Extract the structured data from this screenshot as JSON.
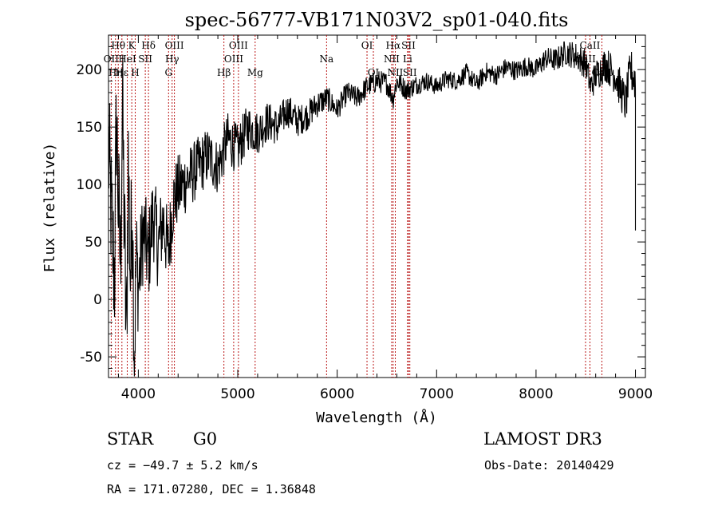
{
  "chart_data": {
    "type": "line",
    "title": "spec-56777-VB171N03V2_sp01-040.fits",
    "xlabel": "Wavelength (Å)",
    "ylabel": "Flux (relative)",
    "xlim": [
      3700,
      9100
    ],
    "ylim": [
      -68,
      230
    ],
    "xticks": [
      4000,
      5000,
      6000,
      7000,
      8000,
      9000
    ],
    "yticks": [
      -50,
      0,
      50,
      100,
      150,
      200
    ],
    "grid": false,
    "series": [
      {
        "name": "flux",
        "x": [
          3700,
          3720,
          3740,
          3760,
          3780,
          3800,
          3820,
          3840,
          3860,
          3880,
          3900,
          3920,
          3940,
          3960,
          3980,
          4000,
          4050,
          4100,
          4150,
          4200,
          4250,
          4300,
          4350,
          4400,
          4500,
          4600,
          4700,
          4800,
          4900,
          5000,
          5100,
          5200,
          5300,
          5400,
          5500,
          5600,
          5700,
          5800,
          5900,
          6000,
          6100,
          6200,
          6300,
          6400,
          6500,
          6563,
          6600,
          6700,
          6800,
          6900,
          7000,
          7100,
          7200,
          7300,
          7400,
          7500,
          7600,
          7700,
          7800,
          7900,
          8000,
          8100,
          8200,
          8300,
          8400,
          8500,
          8550,
          8600,
          8650,
          8700,
          8800,
          8900,
          8950,
          9000
        ],
        "y": [
          130,
          90,
          50,
          20,
          160,
          80,
          30,
          170,
          60,
          -40,
          120,
          20,
          90,
          -55,
          40,
          10,
          60,
          35,
          75,
          45,
          70,
          40,
          85,
          95,
          105,
          115,
          125,
          115,
          140,
          130,
          150,
          145,
          155,
          150,
          165,
          155,
          160,
          170,
          175,
          165,
          180,
          175,
          185,
          190,
          188,
          175,
          190,
          182,
          187,
          190,
          185,
          192,
          190,
          197,
          187,
          198,
          195,
          202,
          199,
          203,
          200,
          210,
          208,
          215,
          212,
          205,
          185,
          195,
          200,
          205,
          195,
          170,
          200,
          190
        ],
        "noise_amplitude": [
          [
            3700,
            65
          ],
          [
            3900,
            70
          ],
          [
            4000,
            45
          ],
          [
            4300,
            35
          ],
          [
            4500,
            28
          ],
          [
            5000,
            22
          ],
          [
            5500,
            15
          ],
          [
            6000,
            10
          ],
          [
            6500,
            10
          ],
          [
            7000,
            8
          ],
          [
            8000,
            9
          ],
          [
            8600,
            14
          ],
          [
            9000,
            20
          ]
        ]
      }
    ],
    "lines": [
      {
        "label": "Hθ",
        "x": 3798,
        "row": 0
      },
      {
        "label": "OII",
        "x": 3727,
        "row": 1
      },
      {
        "label": "Hε",
        "x": 3835,
        "row": 2
      },
      {
        "label": "K",
        "x": 3934,
        "row": 0
      },
      {
        "label": "HeI",
        "x": 3889,
        "row": 1
      },
      {
        "label": "Hη",
        "x": 3770,
        "row": 2
      },
      {
        "label": "H",
        "x": 3969,
        "row": 2
      },
      {
        "label": "SII",
        "x": 4070,
        "row": 1
      },
      {
        "label": "Hδ",
        "x": 4102,
        "row": 0
      },
      {
        "label": "OIII",
        "x": 4363,
        "row": 0
      },
      {
        "label": "Hγ",
        "x": 4340,
        "row": 1
      },
      {
        "label": "G",
        "x": 4304,
        "row": 2
      },
      {
        "label": "Hβ",
        "x": 4861,
        "row": 2
      },
      {
        "label": "OIII",
        "x": 5007,
        "row": 0
      },
      {
        "label": "OIII",
        "x": 4959,
        "row": 1
      },
      {
        "label": "Mg",
        "x": 5175,
        "row": 2
      },
      {
        "label": "Na",
        "x": 5893,
        "row": 1
      },
      {
        "label": "OI",
        "x": 6300,
        "row": 0
      },
      {
        "label": "OI",
        "x": 6364,
        "row": 2
      },
      {
        "label": "Hα",
        "x": 6563,
        "row": 0
      },
      {
        "label": "SII",
        "x": 6717,
        "row": 0
      },
      {
        "label": "NII",
        "x": 6548,
        "row": 1
      },
      {
        "label": "Li",
        "x": 6708,
        "row": 1
      },
      {
        "label": "NII",
        "x": 6584,
        "row": 2
      },
      {
        "label": "SII",
        "x": 6731,
        "row": 2
      },
      {
        "label": "CaII",
        "x": 8542,
        "row": 0
      },
      {
        "label": "CaII",
        "x": 8498,
        "row": 1
      },
      {
        "label": "CaII",
        "x": 8662,
        "row": 2
      }
    ]
  },
  "info": {
    "object_class": "STAR",
    "subclass": "G0",
    "survey": "LAMOST DR3",
    "redshift_line": "cz = −49.7 ± 5.2 km/s",
    "obs_date": "Obs-Date: 20140429",
    "coords": "RA = 171.07280, DEC =    1.36848"
  }
}
